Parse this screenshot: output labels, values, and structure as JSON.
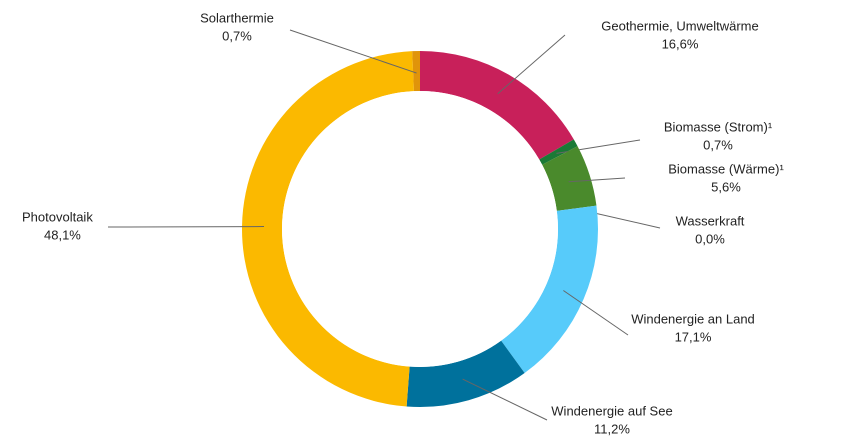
{
  "chart_data": {
    "type": "donut",
    "categories": [
      "Geothermie, Umweltwärme",
      "Biomasse (Strom)¹",
      "Biomasse (Wärme)¹",
      "Wasserkraft",
      "Windenergie an Land",
      "Windenergie auf See",
      "Photovoltaik",
      "Solarthermie"
    ],
    "values": [
      16.6,
      0.7,
      5.6,
      0.0,
      17.1,
      11.2,
      48.1,
      0.7
    ],
    "value_labels": [
      "16,6%",
      "0,7%",
      "5,6%",
      "0,0%",
      "17,1%",
      "11,2%",
      "48,1%",
      "0,7%"
    ],
    "colors": [
      "#c8205a",
      "#1b7a36",
      "#4a8a2c",
      "#2b5fa8",
      "#57cbfa",
      "#00719c",
      "#fbb900",
      "#e0940a"
    ]
  }
}
